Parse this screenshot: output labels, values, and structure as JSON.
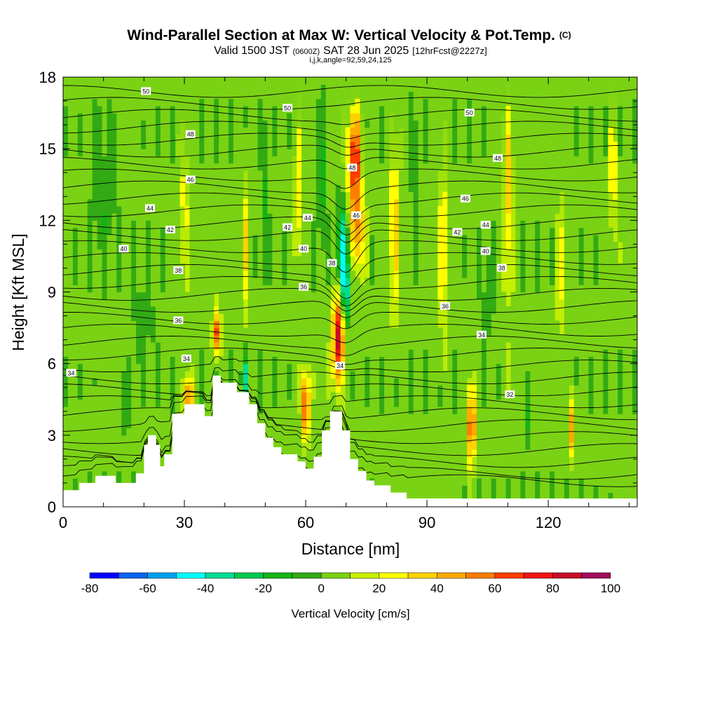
{
  "chart_data": {
    "type": "heatmap",
    "title": "Wind-Parallel Section at Max W: Vertical Velocity & Pot.Temp.",
    "title_mark": "(C)",
    "subtitle_main": "Valid 1500 JST",
    "subtitle_z": "(0600Z)",
    "subtitle_date": "SAT 28 Jun 2025",
    "subtitle_fcst": "[12hrFcst@2227z]",
    "params": "i,j,k,angle=92,59,24,125",
    "xlabel": "Distance [nm]",
    "ylabel": "Height [Kft MSL]",
    "xlim": [
      0,
      142
    ],
    "ylim": [
      0,
      18
    ],
    "x_ticks": [
      "0",
      "30",
      "60",
      "90",
      "120"
    ],
    "x_tick_values": [
      0,
      30,
      60,
      90,
      120
    ],
    "y_ticks": [
      "0",
      "3",
      "6",
      "9",
      "12",
      "15",
      "18"
    ],
    "y_tick_values": [
      0,
      3,
      6,
      9,
      12,
      15,
      18
    ],
    "colorbar": {
      "label": "Vertical Velocity [cm/s]",
      "tick_labels": [
        "-80",
        "-60",
        "-40",
        "-20",
        "0",
        "20",
        "40",
        "60",
        "80",
        "100"
      ],
      "tick_values": [
        -80,
        -60,
        -40,
        -20,
        0,
        20,
        40,
        60,
        80,
        100
      ],
      "levels": [
        -80,
        -70,
        -60,
        -50,
        -40,
        -30,
        -20,
        -10,
        0,
        10,
        20,
        30,
        40,
        50,
        60,
        70,
        80,
        90,
        100
      ],
      "colors": [
        "#0000ff",
        "#0a64f0",
        "#00a0f0",
        "#00ffff",
        "#00dc96",
        "#00c850",
        "#14b414",
        "#32aa14",
        "#7ad214",
        "#c8f000",
        "#ffff00",
        "#ffd200",
        "#ffaa00",
        "#ff7d00",
        "#ff3c00",
        "#f01414",
        "#c80a28",
        "#a00a5a",
        "#5a0a8c"
      ]
    },
    "terrain": [
      [
        0,
        0.7
      ],
      [
        4,
        0.7
      ],
      [
        4,
        1.0
      ],
      [
        8,
        1.0
      ],
      [
        8,
        1.3
      ],
      [
        13,
        1.3
      ],
      [
        13,
        1.0
      ],
      [
        18,
        1.0
      ],
      [
        18,
        1.4
      ],
      [
        20,
        1.4
      ],
      [
        20,
        2.6
      ],
      [
        21,
        2.6
      ],
      [
        21,
        3.0
      ],
      [
        23,
        3.0
      ],
      [
        23,
        2.6
      ],
      [
        24,
        2.6
      ],
      [
        24,
        1.7
      ],
      [
        25,
        1.7
      ],
      [
        25,
        2.2
      ],
      [
        27,
        2.2
      ],
      [
        27,
        3.9
      ],
      [
        30,
        3.9
      ],
      [
        30,
        4.3
      ],
      [
        35,
        4.3
      ],
      [
        35,
        3.8
      ],
      [
        37,
        3.8
      ],
      [
        37,
        5.5
      ],
      [
        39,
        5.5
      ],
      [
        39,
        5.2
      ],
      [
        43,
        5.2
      ],
      [
        43,
        4.8
      ],
      [
        46,
        4.8
      ],
      [
        46,
        4.3
      ],
      [
        48,
        4.3
      ],
      [
        48,
        3.5
      ],
      [
        50,
        3.5
      ],
      [
        50,
        2.9
      ],
      [
        52,
        2.9
      ],
      [
        52,
        2.5
      ],
      [
        54,
        2.5
      ],
      [
        54,
        2.2
      ],
      [
        58,
        2.2
      ],
      [
        58,
        1.9
      ],
      [
        60,
        1.9
      ],
      [
        60,
        1.6
      ],
      [
        62,
        1.6
      ],
      [
        62,
        2.1
      ],
      [
        64,
        2.1
      ],
      [
        64,
        3.2
      ],
      [
        66,
        3.2
      ],
      [
        66,
        4.0
      ],
      [
        69,
        4.0
      ],
      [
        69,
        3.2
      ],
      [
        71,
        3.2
      ],
      [
        71,
        2.0
      ],
      [
        73,
        2.0
      ],
      [
        73,
        1.5
      ],
      [
        75,
        1.5
      ],
      [
        75,
        1.1
      ],
      [
        77,
        1.1
      ],
      [
        77,
        0.9
      ],
      [
        81,
        0.9
      ],
      [
        81,
        0.6
      ],
      [
        85,
        0.6
      ],
      [
        85,
        0.35
      ],
      [
        142,
        0.35
      ]
    ],
    "contour_labels": [
      {
        "text": "50",
        "x": 20.5,
        "y": 17.4
      },
      {
        "text": "50",
        "x": 55.5,
        "y": 16.7
      },
      {
        "text": "50",
        "x": 100.5,
        "y": 16.5
      },
      {
        "text": "48",
        "x": 31.5,
        "y": 15.6
      },
      {
        "text": "48",
        "x": 107.5,
        "y": 14.6
      },
      {
        "text": "48",
        "x": 71.5,
        "y": 14.2
      },
      {
        "text": "46",
        "x": 31.5,
        "y": 13.7
      },
      {
        "text": "46",
        "x": 99.5,
        "y": 12.9
      },
      {
        "text": "46",
        "x": 72.5,
        "y": 12.2
      },
      {
        "text": "44",
        "x": 21.5,
        "y": 12.5
      },
      {
        "text": "44",
        "x": 60.5,
        "y": 12.1
      },
      {
        "text": "44",
        "x": 104.5,
        "y": 11.8
      },
      {
        "text": "42",
        "x": 26.5,
        "y": 11.6
      },
      {
        "text": "42",
        "x": 55.5,
        "y": 11.7
      },
      {
        "text": "42",
        "x": 97.5,
        "y": 11.5
      },
      {
        "text": "40",
        "x": 15.0,
        "y": 10.8
      },
      {
        "text": "40",
        "x": 59.5,
        "y": 10.8
      },
      {
        "text": "40",
        "x": 104.5,
        "y": 10.7
      },
      {
        "text": "38",
        "x": 28.5,
        "y": 9.9
      },
      {
        "text": "38",
        "x": 66.5,
        "y": 10.2
      },
      {
        "text": "38",
        "x": 108.5,
        "y": 10.0
      },
      {
        "text": "36",
        "x": 59.5,
        "y": 9.2
      },
      {
        "text": "36",
        "x": 94.5,
        "y": 8.4
      },
      {
        "text": "36",
        "x": 28.5,
        "y": 7.8
      },
      {
        "text": "34",
        "x": 103.5,
        "y": 7.2
      },
      {
        "text": "34",
        "x": 30.5,
        "y": 6.2
      },
      {
        "text": "34",
        "x": 2.0,
        "y": 5.6
      },
      {
        "text": "34",
        "x": 68.5,
        "y": 5.9
      },
      {
        "text": "32",
        "x": 110.5,
        "y": 4.7
      }
    ]
  }
}
